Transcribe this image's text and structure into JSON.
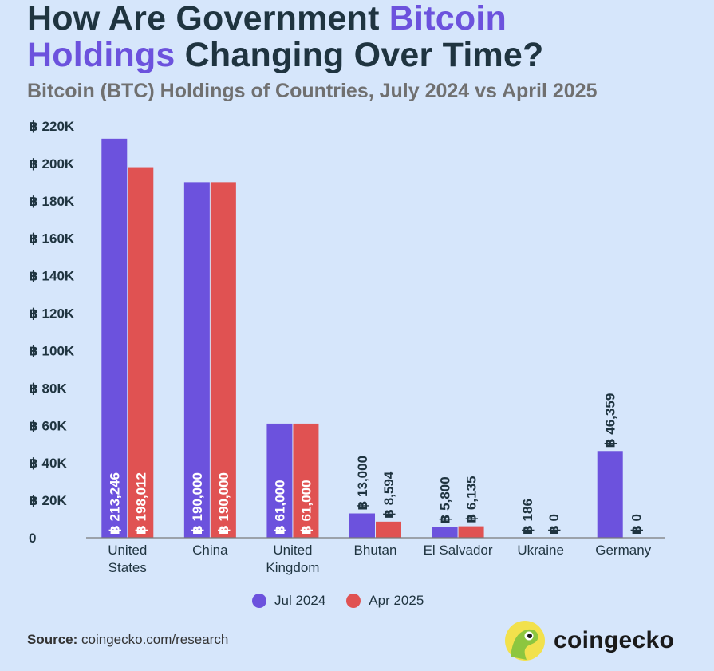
{
  "header": {
    "title_part1": "How Are Government ",
    "title_accent1": "Bitcoin",
    "title_accent2": "Holdings",
    "title_part2": " Changing Over Time?",
    "subtitle": "Bitcoin (BTC) Holdings of Countries, July 2024 vs April 2025"
  },
  "chart_data": {
    "type": "bar",
    "categories": [
      "United States",
      "China",
      "United Kingdom",
      "Bhutan",
      "El Salvador",
      "Ukraine",
      "Germany"
    ],
    "category_lines": [
      [
        "United",
        "States"
      ],
      [
        "China"
      ],
      [
        "United",
        "Kingdom"
      ],
      [
        "Bhutan"
      ],
      [
        "El Salvador"
      ],
      [
        "Ukraine"
      ],
      [
        "Germany"
      ]
    ],
    "series": [
      {
        "name": "Jul 2024",
        "color": "#6c52dd",
        "values": [
          213246,
          190000,
          61000,
          13000,
          5800,
          186,
          46359
        ],
        "labels": [
          "฿ 213,246",
          "฿ 190,000",
          "฿ 61,000",
          "฿ 13,000",
          "฿ 5,800",
          "฿ 186",
          "฿ 46,359"
        ]
      },
      {
        "name": "Apr 2025",
        "color": "#e05252",
        "values": [
          198012,
          190000,
          61000,
          8594,
          6135,
          0,
          0
        ],
        "labels": [
          "฿ 198,012",
          "฿ 190,000",
          "฿ 61,000",
          "฿ 8,594",
          "฿ 6,135",
          "฿ 0",
          "฿ 0"
        ]
      }
    ],
    "yticks": [
      0,
      20000,
      40000,
      60000,
      80000,
      100000,
      120000,
      140000,
      160000,
      180000,
      200000,
      220000
    ],
    "ytick_labels": [
      "0",
      "฿ 20K",
      "฿ 40K",
      "฿ 60K",
      "฿ 80K",
      "฿ 100K",
      "฿ 120K",
      "฿ 140K",
      "฿ 160K",
      "฿ 180K",
      "฿ 200K",
      "฿ 220K"
    ],
    "ylim": [
      0,
      220000
    ],
    "grid": false,
    "legend_position": "bottom-center"
  },
  "legend": [
    {
      "label": "Jul 2024",
      "color": "#6c52dd"
    },
    {
      "label": "Apr 2025",
      "color": "#e05252"
    }
  ],
  "footer": {
    "source_label": "Source:",
    "source_link": "coingecko.com/research",
    "brand": "coingecko"
  }
}
